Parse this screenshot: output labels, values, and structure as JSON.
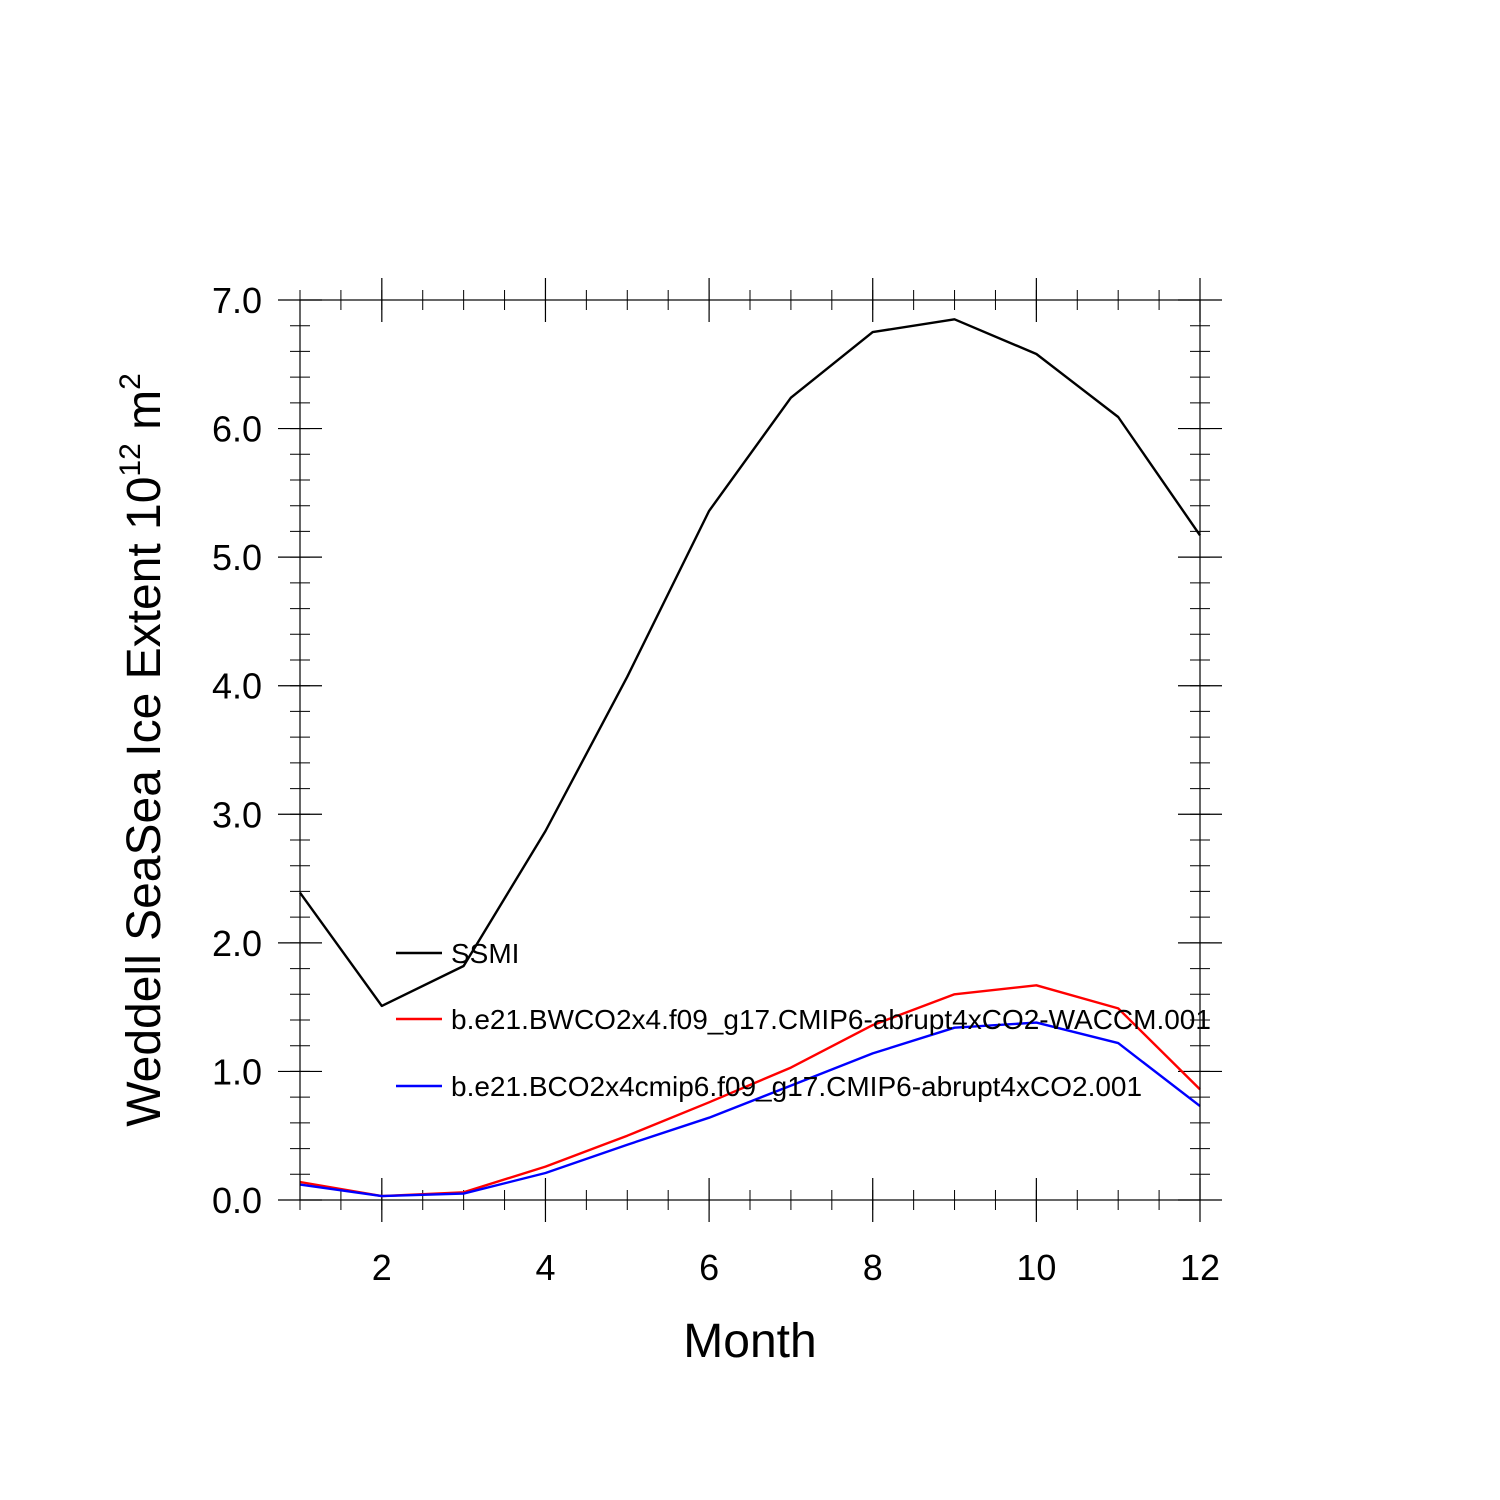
{
  "chart_data": {
    "type": "line",
    "xlabel": "Month",
    "ylabel": "Weddell SeaSea Ice Extent 10",
    "ylabel_superscript": "12",
    "ylabel_unit": " m",
    "ylabel_unit_superscript": "2",
    "xlim": [
      1,
      12
    ],
    "ylim": [
      0,
      7
    ],
    "x_ticks": [
      2,
      4,
      6,
      8,
      10,
      12
    ],
    "x_tick_labels": [
      "2",
      "4",
      "6",
      "8",
      "10",
      "12"
    ],
    "y_ticks": [
      0,
      1,
      2,
      3,
      4,
      5,
      6,
      7
    ],
    "y_tick_labels": [
      "0.0",
      "1.0",
      "2.0",
      "3.0",
      "4.0",
      "5.0",
      "6.0",
      "7.0"
    ],
    "grid": false,
    "legend_position": "inside-lower-left",
    "x": [
      1,
      2,
      3,
      4,
      5,
      6,
      7,
      8,
      9,
      10,
      11,
      12
    ],
    "series": [
      {
        "name": "SSMI",
        "color": "#000000",
        "values": [
          2.39,
          1.51,
          1.82,
          2.87,
          4.07,
          5.36,
          6.24,
          6.75,
          6.85,
          6.58,
          6.09,
          5.17
        ]
      },
      {
        "name": "b.e21.BWCO2x4.f09_g17.CMIP6-abrupt4xCO2-WACCM.001",
        "color": "#ff0000",
        "values": [
          0.14,
          0.03,
          0.06,
          0.26,
          0.5,
          0.76,
          1.03,
          1.36,
          1.6,
          1.67,
          1.49,
          0.86
        ]
      },
      {
        "name": "b.e21.BCO2x4cmip6.f09_g17.CMIP6-abrupt4xCO2.001",
        "color": "#0000ff",
        "values": [
          0.12,
          0.03,
          0.05,
          0.21,
          0.43,
          0.64,
          0.89,
          1.14,
          1.34,
          1.38,
          1.22,
          0.73
        ]
      }
    ]
  }
}
